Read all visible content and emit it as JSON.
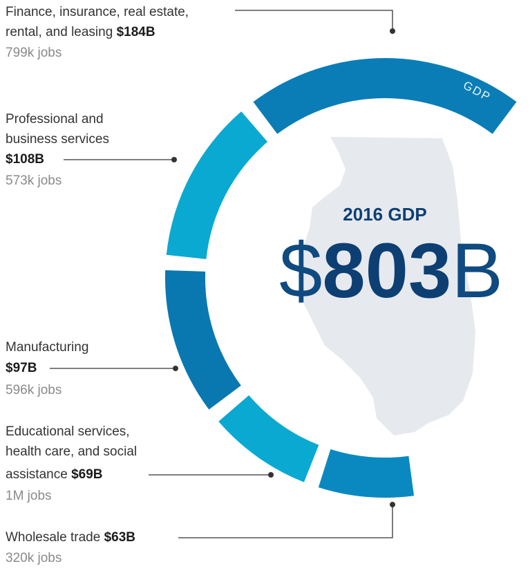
{
  "chart_data": {
    "type": "donut",
    "center_title": "2016 GDP",
    "total": {
      "prefix": "$",
      "value": 803,
      "suffix": "B"
    },
    "ring_label": "GDP",
    "categories": [
      [
        "Finance, insurance, real estate,",
        "rental, and leasing"
      ],
      [
        "Professional and",
        "business services"
      ],
      [
        "Manufacturing"
      ],
      [
        "Educational services,",
        "health care, and social",
        "assistance"
      ],
      [
        "Wholesale trade"
      ]
    ],
    "values": [
      184,
      108,
      97,
      69,
      63
    ],
    "value_labels": [
      "$184B",
      "$108B",
      "$97B",
      "$69B",
      "$63B"
    ],
    "jobs": [
      "799k jobs",
      "573k jobs",
      "596k jobs",
      "1M jobs",
      "320k jobs"
    ],
    "colors": [
      "#0a7db6",
      "#0aa9d1",
      "#0a78b0",
      "#0aa9d1",
      "#0a89c1"
    ]
  }
}
